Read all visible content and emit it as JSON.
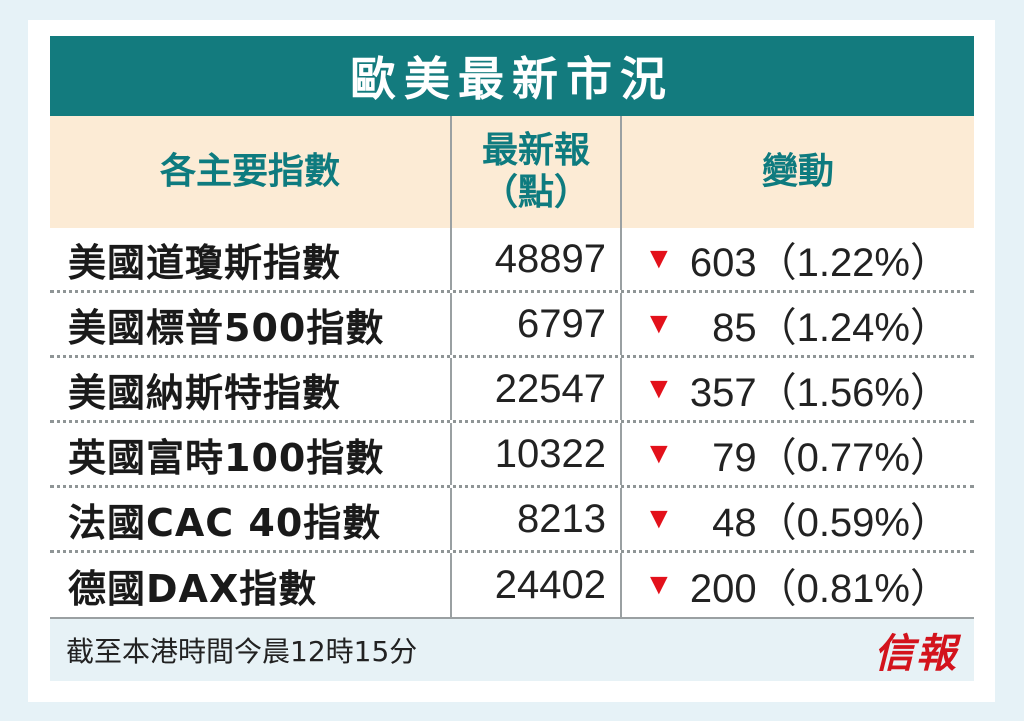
{
  "title": "歐美最新市況",
  "headers": {
    "index": "各主要指數",
    "latest_line1": "最新報",
    "latest_line2": "（點）",
    "change": "變動"
  },
  "rows": [
    {
      "name": "美國道瓊斯指數",
      "latest": "48897",
      "direction": "down",
      "change": "603（1.22%）"
    },
    {
      "name": "美國標普500指數",
      "latest": "6797",
      "direction": "down",
      "change": "85（1.24%）"
    },
    {
      "name": "美國納斯特指數",
      "latest": "22547",
      "direction": "down",
      "change": "357（1.56%）"
    },
    {
      "name": "英國富時100指數",
      "latest": "10322",
      "direction": "down",
      "change": "79（0.77%）"
    },
    {
      "name": "法國CAC 40指數",
      "latest": "8213",
      "direction": "down",
      "change": "48（0.59%）"
    },
    {
      "name": "德國DAX指數",
      "latest": "24402",
      "direction": "down",
      "change": "200（0.81%）"
    }
  ],
  "footer": {
    "note": "截至本港時間今晨12時15分",
    "logo": "信報"
  },
  "icons": {
    "down": "▼"
  },
  "colors": {
    "title_bg": "#137b7e",
    "header_bg": "#fcebd5",
    "down_arrow": "#e3111b",
    "logo": "#d3131c"
  }
}
